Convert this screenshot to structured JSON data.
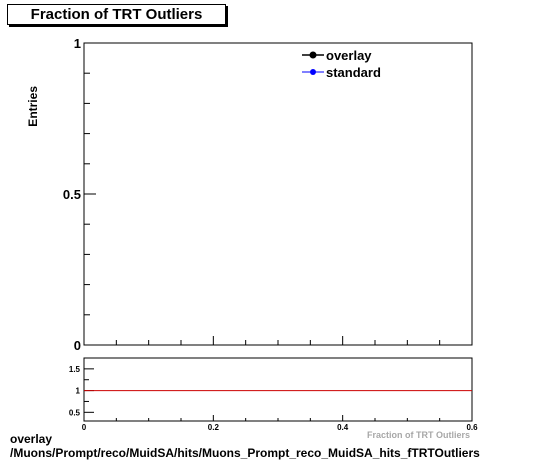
{
  "chart_data": [
    {
      "type": "line",
      "title": "Fraction of TRT Outliers",
      "ylabel": "Entries",
      "xlabel": "Fraction of TRT Outliers",
      "xlim": [
        0,
        0.6
      ],
      "ylim": [
        0,
        1
      ],
      "x_ticks": [
        "0",
        "0.2",
        "0.4",
        "0.6"
      ],
      "y_ticks": [
        "0",
        "0.5",
        "1"
      ],
      "legend_position": "top-right",
      "series": [
        {
          "name": "overlay",
          "color": "#000000",
          "x": [],
          "y": []
        },
        {
          "name": "standard",
          "color": "#0000ff",
          "x": [],
          "y": []
        }
      ]
    },
    {
      "type": "line",
      "ylim": [
        0.3,
        1.75
      ],
      "xlim": [
        0,
        0.6
      ],
      "x_ticks": [
        "0",
        "0.2",
        "0.4",
        "0.6"
      ],
      "y_ticks": [
        "0.5",
        "1",
        "1.5"
      ],
      "series": [
        {
          "color": "#cc0000",
          "x": [
            0,
            0.6
          ],
          "y": [
            1,
            1
          ]
        }
      ]
    }
  ],
  "footer": {
    "line1": "overlay",
    "line2": "/Muons/Prompt/reco/MuidSA/hits/Muons_Prompt_reco_MuidSA_hits_fTRTOutliers"
  }
}
